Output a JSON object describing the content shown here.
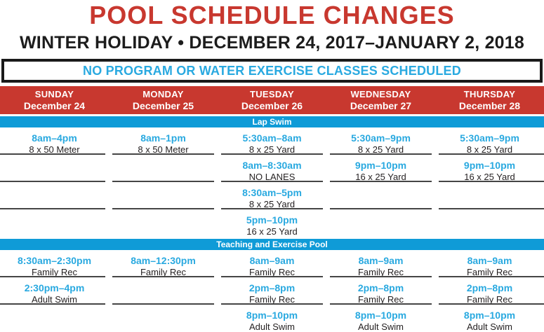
{
  "title": "POOL SCHEDULE CHANGES",
  "subtitle": "WINTER HOLIDAY • DECEMBER 24, 2017–JANUARY 2, 2018",
  "notice": "NO PROGRAM OR WATER EXERCISE CLASSES SCHEDULED",
  "colors": {
    "red": "#C8382F",
    "band_cyan": "#0F9BD7",
    "time_cyan": "#29A9E0",
    "divider_gray": "#454545",
    "text_black": "#231F20"
  },
  "columns": [
    {
      "day": "SUNDAY",
      "date": "December 24"
    },
    {
      "day": "MONDAY",
      "date": "December 25"
    },
    {
      "day": "TUESDAY",
      "date": "December 26"
    },
    {
      "day": "WEDNESDAY",
      "date": "December 27"
    },
    {
      "day": "THURSDAY",
      "date": "December 28"
    }
  ],
  "sections": [
    {
      "label": "Lap Swim",
      "rows": [
        [
          {
            "time": "8am–4pm",
            "desc": "8 x 50 Meter"
          },
          {
            "time": "8am–1pm",
            "desc": "8 x 50 Meter"
          },
          {
            "time": "5:30am–8am",
            "desc": "8 x 25 Yard"
          },
          {
            "time": "5:30am–9pm",
            "desc": "8 x 25 Yard"
          },
          {
            "time": "5:30am–9pm",
            "desc": "8 x 25 Yard"
          }
        ],
        [
          null,
          null,
          {
            "time": "8am–8:30am",
            "desc": "NO LANES"
          },
          {
            "time": "9pm–10pm",
            "desc": "16 x 25 Yard"
          },
          {
            "time": "9pm–10pm",
            "desc": "16 x 25 Yard"
          }
        ],
        [
          null,
          null,
          {
            "time": "8:30am–5pm",
            "desc": "8 x 25 Yard"
          },
          null,
          null
        ],
        [
          null,
          null,
          {
            "time": "5pm–10pm",
            "desc": "16 x 25 Yard"
          },
          null,
          null
        ]
      ]
    },
    {
      "label": "Teaching and Exercise Pool",
      "rows": [
        [
          {
            "time": "8:30am–2:30pm",
            "desc": "Family Rec"
          },
          {
            "time": "8am–12:30pm",
            "desc": "Family Rec"
          },
          {
            "time": "8am–9am",
            "desc": "Family Rec"
          },
          {
            "time": "8am–9am",
            "desc": "Family Rec"
          },
          {
            "time": "8am–9am",
            "desc": "Family Rec"
          }
        ],
        [
          {
            "time": "2:30pm–4pm",
            "desc": "Adult Swim"
          },
          null,
          {
            "time": "2pm–8pm",
            "desc": "Family Rec"
          },
          {
            "time": "2pm–8pm",
            "desc": "Family Rec"
          },
          {
            "time": "2pm–8pm",
            "desc": "Family Rec"
          }
        ],
        [
          null,
          null,
          {
            "time": "8pm–10pm",
            "desc": "Adult Swim"
          },
          {
            "time": "8pm–10pm",
            "desc": "Adult Swim"
          },
          {
            "time": "8pm–10pm",
            "desc": "Adult Swim"
          }
        ]
      ]
    }
  ]
}
